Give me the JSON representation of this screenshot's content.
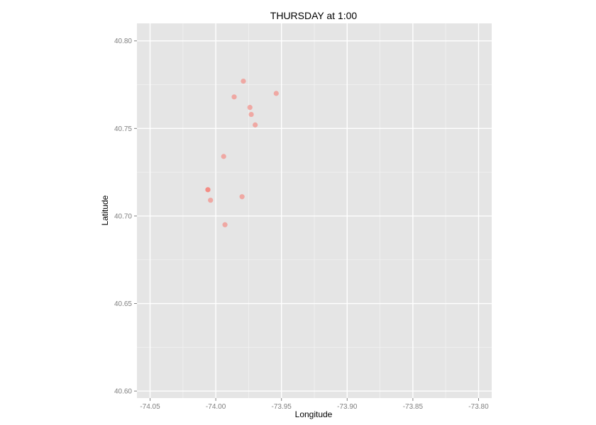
{
  "chart_data": {
    "type": "scatter",
    "title": "THURSDAY at 1:00",
    "xlabel": "Longitude",
    "ylabel": "Latitude",
    "xlim": [
      -74.06,
      -73.79
    ],
    "ylim": [
      40.596,
      40.81
    ],
    "x_ticks": [
      -74.05,
      -74.0,
      -73.95,
      -73.9,
      -73.85,
      -73.8
    ],
    "x_tick_labels": [
      "-74.05",
      "-74.00",
      "-73.95",
      "-73.90",
      "-73.85",
      "-73.80"
    ],
    "y_ticks": [
      40.6,
      40.65,
      40.7,
      40.75,
      40.8
    ],
    "y_tick_labels": [
      "40.60",
      "40.65",
      "40.70",
      "40.75",
      "40.80"
    ],
    "grid": true,
    "points": [
      {
        "x": -73.979,
        "y": 40.777
      },
      {
        "x": -73.986,
        "y": 40.768
      },
      {
        "x": -73.954,
        "y": 40.77
      },
      {
        "x": -73.974,
        "y": 40.762
      },
      {
        "x": -73.973,
        "y": 40.758
      },
      {
        "x": -73.97,
        "y": 40.752
      },
      {
        "x": -73.994,
        "y": 40.734
      },
      {
        "x": -74.006,
        "y": 40.715
      },
      {
        "x": -74.006,
        "y": 40.715
      },
      {
        "x": -73.98,
        "y": 40.711
      },
      {
        "x": -74.004,
        "y": 40.709
      },
      {
        "x": -73.993,
        "y": 40.695
      }
    ],
    "colors": {
      "panel": "#e5e5e5",
      "grid": "#ffffff",
      "point": "#f8766d",
      "tick_text": "#7f7f7f",
      "tick_mark": "#7f7f7f"
    }
  }
}
